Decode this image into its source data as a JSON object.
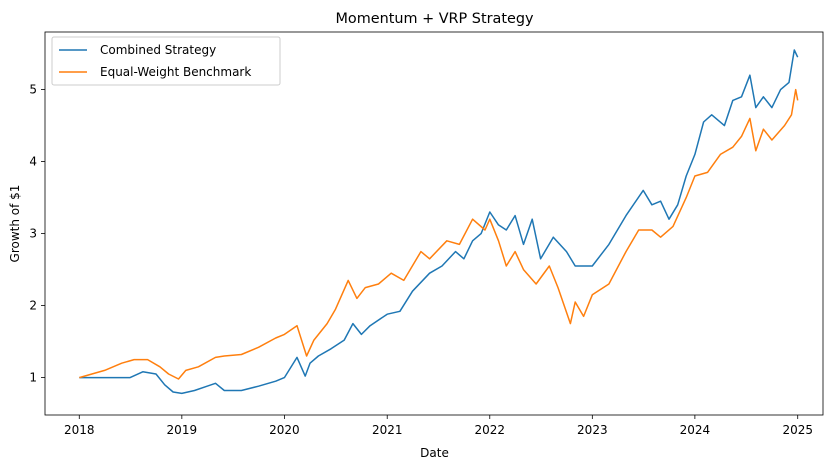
{
  "chart_data": {
    "type": "line",
    "title": "Momentum + VRP Strategy",
    "xlabel": "Date",
    "ylabel": "Growth of $1",
    "xlim": [
      "2017-09-01",
      "2025-04-01"
    ],
    "ylim": [
      0.48,
      5.8
    ],
    "xticks": [
      "2018",
      "2019",
      "2020",
      "2021",
      "2022",
      "2023",
      "2024",
      "2025"
    ],
    "yticks": [
      1,
      2,
      3,
      4,
      5
    ],
    "grid": false,
    "legend": "top-left",
    "colors": [
      "#1f77b4",
      "#ff7f0e"
    ],
    "series": [
      {
        "name": "Combined Strategy",
        "x": [
          "2018-01-01",
          "2018-03-01",
          "2018-06-01",
          "2018-07-01",
          "2018-08-15",
          "2018-10-01",
          "2018-11-01",
          "2018-12-01",
          "2019-01-01",
          "2019-02-15",
          "2019-04-01",
          "2019-05-01",
          "2019-06-01",
          "2019-08-01",
          "2019-10-01",
          "2019-12-01",
          "2020-01-01",
          "2020-02-15",
          "2020-03-15",
          "2020-04-01",
          "2020-05-01",
          "2020-06-15",
          "2020-08-01",
          "2020-09-01",
          "2020-10-01",
          "2020-11-01",
          "2021-01-01",
          "2021-02-15",
          "2021-04-01",
          "2021-06-01",
          "2021-07-15",
          "2021-09-01",
          "2021-10-01",
          "2021-11-01",
          "2021-12-01",
          "2022-01-01",
          "2022-02-01",
          "2022-03-01",
          "2022-04-01",
          "2022-05-01",
          "2022-06-01",
          "2022-07-01",
          "2022-08-15",
          "2022-10-01",
          "2022-11-01",
          "2022-12-01",
          "2023-01-01",
          "2023-03-01",
          "2023-05-01",
          "2023-07-01",
          "2023-08-01",
          "2023-09-01",
          "2023-10-01",
          "2023-11-01",
          "2023-12-01",
          "2024-01-01",
          "2024-02-01",
          "2024-03-01",
          "2024-04-15",
          "2024-05-15",
          "2024-06-15",
          "2024-07-15",
          "2024-08-05",
          "2024-09-01",
          "2024-10-01",
          "2024-11-01",
          "2024-12-01",
          "2024-12-20",
          "2025-01-01"
        ],
        "values": [
          1.0,
          1.0,
          1.0,
          1.0,
          1.08,
          1.05,
          0.9,
          0.8,
          0.78,
          0.82,
          0.88,
          0.92,
          0.82,
          0.82,
          0.88,
          0.95,
          1.0,
          1.28,
          1.02,
          1.2,
          1.3,
          1.4,
          1.52,
          1.75,
          1.6,
          1.72,
          1.88,
          1.92,
          2.2,
          2.45,
          2.55,
          2.75,
          2.65,
          2.9,
          3.0,
          3.3,
          3.12,
          3.05,
          3.25,
          2.85,
          3.2,
          2.65,
          2.95,
          2.75,
          2.55,
          2.55,
          2.55,
          2.85,
          3.25,
          3.6,
          3.4,
          3.45,
          3.2,
          3.4,
          3.8,
          4.1,
          4.55,
          4.65,
          4.5,
          4.85,
          4.9,
          5.2,
          4.75,
          4.9,
          4.75,
          5.0,
          5.1,
          5.55,
          5.45
        ]
      },
      {
        "name": "Equal-Weight Benchmark",
        "x": [
          "2018-01-01",
          "2018-02-15",
          "2018-04-01",
          "2018-06-01",
          "2018-07-15",
          "2018-09-01",
          "2018-10-15",
          "2018-11-15",
          "2018-12-20",
          "2019-01-15",
          "2019-03-01",
          "2019-05-01",
          "2019-06-01",
          "2019-08-01",
          "2019-10-01",
          "2019-12-01",
          "2020-01-01",
          "2020-02-15",
          "2020-03-20",
          "2020-04-15",
          "2020-06-01",
          "2020-07-01",
          "2020-08-15",
          "2020-09-15",
          "2020-10-15",
          "2020-12-01",
          "2021-01-15",
          "2021-03-01",
          "2021-05-01",
          "2021-06-01",
          "2021-08-01",
          "2021-09-15",
          "2021-11-01",
          "2021-12-15",
          "2022-01-01",
          "2022-02-01",
          "2022-03-01",
          "2022-04-01",
          "2022-05-01",
          "2022-06-15",
          "2022-08-01",
          "2022-09-01",
          "2022-10-15",
          "2022-11-01",
          "2022-12-01",
          "2023-01-01",
          "2023-03-01",
          "2023-05-01",
          "2023-06-15",
          "2023-08-01",
          "2023-09-01",
          "2023-10-15",
          "2023-12-01",
          "2024-01-01",
          "2024-02-15",
          "2024-04-01",
          "2024-05-15",
          "2024-06-15",
          "2024-07-15",
          "2024-08-05",
          "2024-09-01",
          "2024-10-01",
          "2024-11-15",
          "2024-12-10",
          "2024-12-25",
          "2025-01-01"
        ],
        "values": [
          1.0,
          1.05,
          1.1,
          1.2,
          1.25,
          1.25,
          1.15,
          1.05,
          0.98,
          1.1,
          1.15,
          1.28,
          1.3,
          1.32,
          1.42,
          1.55,
          1.6,
          1.72,
          1.3,
          1.52,
          1.75,
          1.95,
          2.35,
          2.1,
          2.25,
          2.3,
          2.45,
          2.35,
          2.75,
          2.65,
          2.9,
          2.85,
          3.2,
          3.05,
          3.2,
          2.9,
          2.55,
          2.75,
          2.5,
          2.3,
          2.55,
          2.25,
          1.75,
          2.05,
          1.85,
          2.15,
          2.3,
          2.75,
          3.05,
          3.05,
          2.95,
          3.1,
          3.5,
          3.8,
          3.85,
          4.1,
          4.2,
          4.35,
          4.6,
          4.15,
          4.45,
          4.3,
          4.5,
          4.65,
          5.0,
          4.85
        ]
      }
    ]
  }
}
